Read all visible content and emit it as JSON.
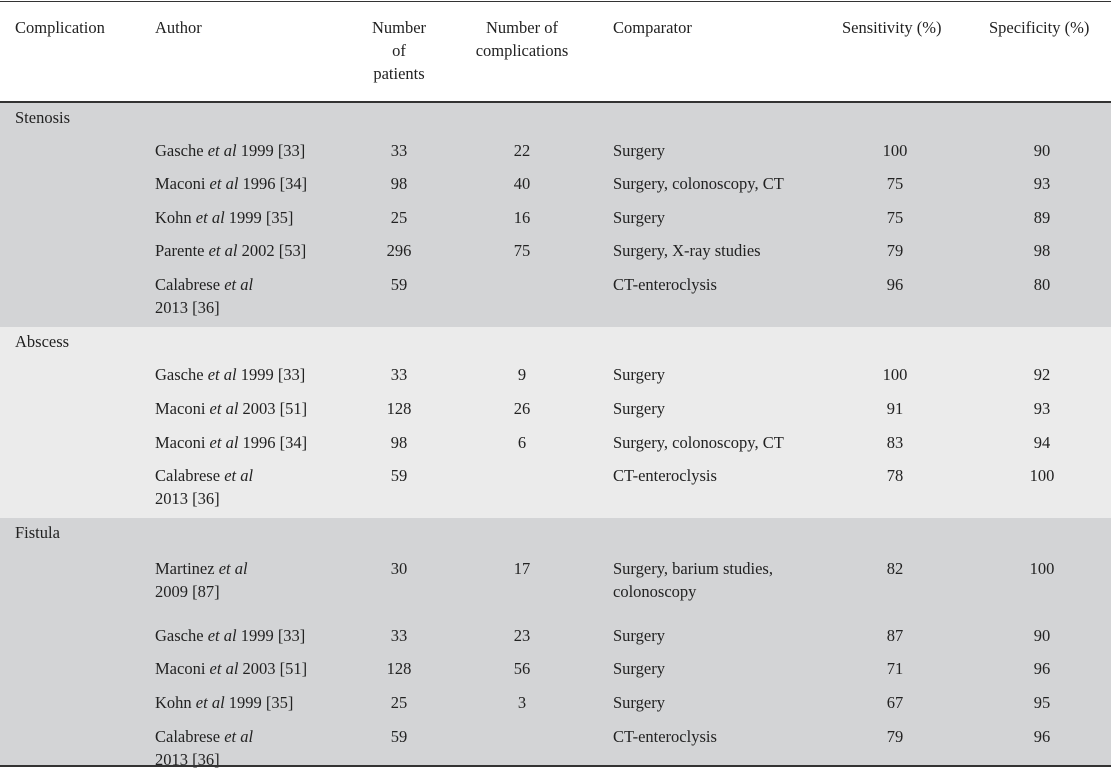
{
  "headers": {
    "complication": "Complication",
    "author": "Author",
    "patients": [
      "Number",
      "of",
      "patients"
    ],
    "complications": [
      "Number of",
      "complications"
    ],
    "comparator": "Comparator",
    "sensitivity": "Sensitivity (%)",
    "specificity": "Specificity (%)"
  },
  "groups": [
    {
      "label": "Stenosis",
      "rows": [
        {
          "author_pre": "Gasche",
          "author_etal": "et al",
          "author_post": "1999 [33]",
          "author_post2": "",
          "patients": "33",
          "complications": "22",
          "comparator": [
            "Surgery"
          ],
          "sensitivity": "100",
          "specificity": "90"
        },
        {
          "author_pre": "Maconi",
          "author_etal": "et al",
          "author_post": "1996 [34]",
          "author_post2": "",
          "patients": "98",
          "complications": "40",
          "comparator": [
            "Surgery, colonoscopy, CT"
          ],
          "sensitivity": "75",
          "specificity": "93"
        },
        {
          "author_pre": "Kohn",
          "author_etal": "et al",
          "author_post": "1999 [35]",
          "author_post2": "",
          "patients": "25",
          "complications": "16",
          "comparator": [
            "Surgery"
          ],
          "sensitivity": "75",
          "specificity": "89"
        },
        {
          "author_pre": "Parente",
          "author_etal": "et al",
          "author_post": "2002 [53]",
          "author_post2": "",
          "patients": "296",
          "complications": "75",
          "comparator": [
            "Surgery, X-ray studies"
          ],
          "sensitivity": "79",
          "specificity": "98"
        },
        {
          "author_pre": "Calabrese",
          "author_etal": "et al",
          "author_post": "",
          "author_post2": "2013 [36]",
          "patients": "59",
          "complications": "",
          "comparator": [
            "CT-enteroclysis"
          ],
          "sensitivity": "96",
          "specificity": "80"
        }
      ]
    },
    {
      "label": "Abscess",
      "rows": [
        {
          "author_pre": "Gasche",
          "author_etal": "et al",
          "author_post": "1999 [33]",
          "author_post2": "",
          "patients": "33",
          "complications": "9",
          "comparator": [
            "Surgery"
          ],
          "sensitivity": "100",
          "specificity": "92"
        },
        {
          "author_pre": "Maconi",
          "author_etal": "et al",
          "author_post": "2003 [51]",
          "author_post2": "",
          "patients": "128",
          "complications": "26",
          "comparator": [
            "Surgery"
          ],
          "sensitivity": "91",
          "specificity": "93"
        },
        {
          "author_pre": "Maconi",
          "author_etal": "et al",
          "author_post": "1996 [34]",
          "author_post2": "",
          "patients": "98",
          "complications": "6",
          "comparator": [
            "Surgery, colonoscopy, CT"
          ],
          "sensitivity": "83",
          "specificity": "94"
        },
        {
          "author_pre": "Calabrese",
          "author_etal": "et al",
          "author_post": "",
          "author_post2": "2013 [36]",
          "patients": "59",
          "complications": "",
          "comparator": [
            "CT-enteroclysis"
          ],
          "sensitivity": "78",
          "specificity": "100"
        }
      ]
    },
    {
      "label": "Fistula",
      "rows": [
        {
          "author_pre": "Martinez",
          "author_etal": "et al",
          "author_post": "",
          "author_post2": "2009 [87]",
          "patients": "30",
          "complications": "17",
          "comparator": [
            "Surgery, barium studies,",
            "colonoscopy"
          ],
          "sensitivity": "82",
          "specificity": "100"
        },
        {
          "author_pre": "Gasche",
          "author_etal": "et al",
          "author_post": "1999 [33]",
          "author_post2": "",
          "patients": "33",
          "complications": "23",
          "comparator": [
            "Surgery"
          ],
          "sensitivity": "87",
          "specificity": "90"
        },
        {
          "author_pre": "Maconi",
          "author_etal": "et al",
          "author_post": "2003 [51]",
          "author_post2": "",
          "patients": "128",
          "complications": "56",
          "comparator": [
            "Surgery"
          ],
          "sensitivity": "71",
          "specificity": "96"
        },
        {
          "author_pre": "Kohn",
          "author_etal": "et al",
          "author_post": "1999 [35]",
          "author_post2": "",
          "patients": "25",
          "complications": "3",
          "comparator": [
            "Surgery"
          ],
          "sensitivity": "67",
          "specificity": "95"
        },
        {
          "author_pre": "Calabrese",
          "author_etal": "et al",
          "author_post": "",
          "author_post2": "2013 [36]",
          "patients": "59",
          "complications": "",
          "comparator": [
            "CT-enteroclysis"
          ],
          "sensitivity": "79",
          "specificity": "96"
        }
      ]
    }
  ]
}
